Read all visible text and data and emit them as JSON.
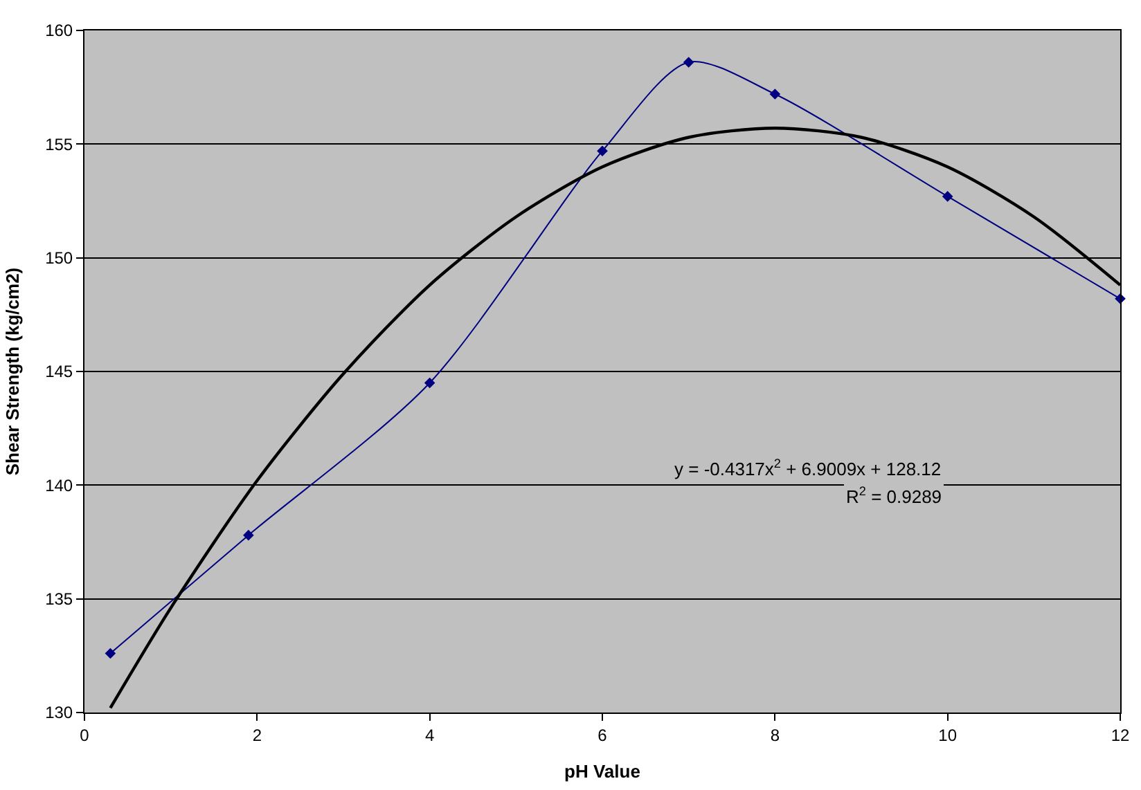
{
  "chart_data": {
    "type": "line",
    "xlabel": "pH Value",
    "ylabel": "Shear Strength (kg/cm2)",
    "series": [
      {
        "color": "#000080",
        "marker": "diamond",
        "x": [
          0.3,
          1.9,
          4,
          6,
          7,
          8,
          10,
          12
        ],
        "values": [
          132.6,
          137.8,
          144.5,
          154.7,
          158.6,
          157.2,
          152.7,
          148.2
        ]
      },
      {
        "color": "#000000",
        "marker": "none",
        "x": [
          0.3,
          1,
          2,
          3,
          4,
          5,
          6,
          7,
          8,
          9,
          10,
          11,
          12
        ],
        "values": [
          130.2,
          134.6,
          140.2,
          144.9,
          148.8,
          151.8,
          154.0,
          155.3,
          155.7,
          155.3,
          154.0,
          151.8,
          148.8
        ]
      }
    ],
    "xlim": [
      0,
      12
    ],
    "xticks": [
      0,
      2,
      4,
      6,
      8,
      10,
      12
    ],
    "ylim": [
      130,
      160
    ],
    "yticks": [
      130,
      135,
      140,
      145,
      150,
      155,
      160
    ],
    "grid": "y",
    "annotations": [
      "y = -0.4317x$^{2}$ + 6.9009x + 128.12",
      "R$^{2}$ = 0.9289"
    ]
  }
}
